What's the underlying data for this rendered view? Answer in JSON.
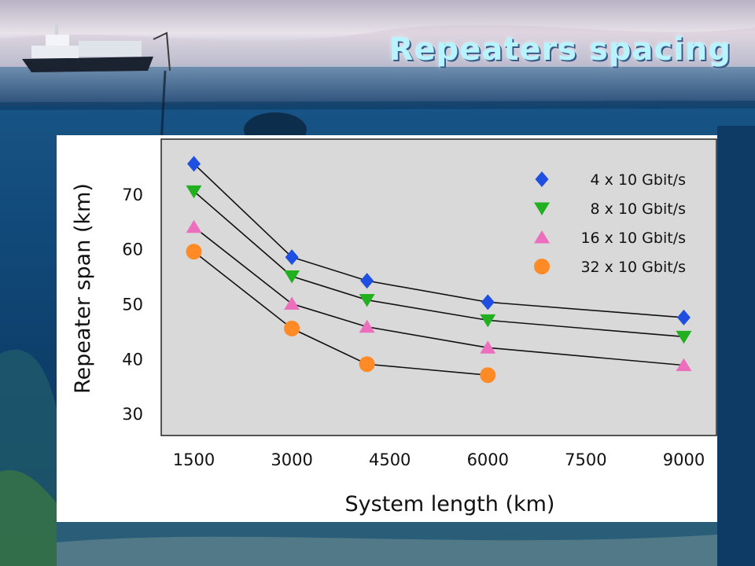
{
  "slide": {
    "title": "Repeaters spacing"
  },
  "chart_data": {
    "type": "line",
    "xlabel": "System length (km)",
    "ylabel": "Repeater span (km)",
    "xlim": [
      1000,
      9500
    ],
    "ylim": [
      26,
      80
    ],
    "xticks": [
      1500,
      3000,
      4500,
      6000,
      7500,
      9000
    ],
    "yticks": [
      30,
      40,
      50,
      60,
      70
    ],
    "grid": false,
    "legend_position": "top-right",
    "series": [
      {
        "name": "4 x 10 Gbit/s",
        "marker": "diamond",
        "color": "#1f4fe0",
        "x": [
          1500,
          3000,
          4150,
          6000,
          9000
        ],
        "y": [
          75.5,
          58.5,
          54.2,
          50.3,
          47.5
        ]
      },
      {
        "name": "8 x 10 Gbit/s",
        "marker": "triangle-down",
        "color": "#22b020",
        "x": [
          1500,
          3000,
          4150,
          6000,
          9000
        ],
        "y": [
          70.5,
          55.0,
          50.7,
          47.0,
          44.0
        ]
      },
      {
        "name": "16 x 10 Gbit/s",
        "marker": "triangle-up",
        "color": "#ec6fbe",
        "x": [
          1500,
          3000,
          4150,
          6000,
          9000
        ],
        "y": [
          64.0,
          50.0,
          45.8,
          42.0,
          38.8
        ]
      },
      {
        "name": "32 x 10 Gbit/s",
        "marker": "circle",
        "color": "#ff8a26",
        "x": [
          1500,
          3000,
          4150,
          6000
        ],
        "y": [
          59.5,
          45.5,
          39.0,
          37.0
        ]
      }
    ]
  }
}
